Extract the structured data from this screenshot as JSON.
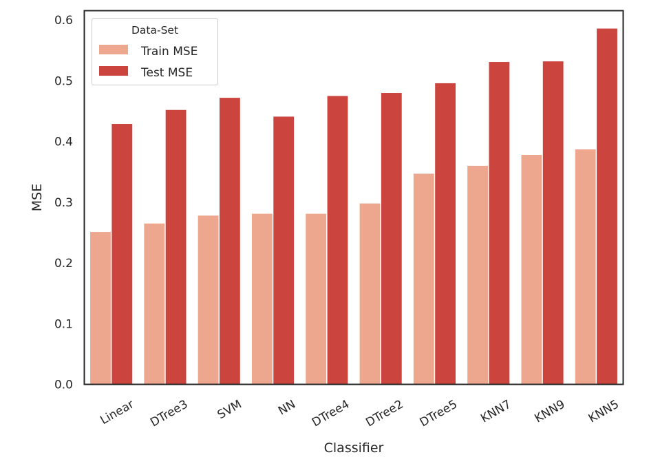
{
  "chart_data": {
    "type": "bar",
    "title": "",
    "xlabel": "Classifier",
    "ylabel": "MSE",
    "categories": [
      "Linear",
      "DTree3",
      "SVM",
      "NN",
      "DTree4",
      "DTree2",
      "DTree5",
      "KNN7",
      "KNN9",
      "KNN5"
    ],
    "series": [
      {
        "name": "Train MSE",
        "color": "#eea78f",
        "values": [
          0.251,
          0.265,
          0.278,
          0.281,
          0.281,
          0.298,
          0.347,
          0.36,
          0.378,
          0.387
        ]
      },
      {
        "name": "Test MSE",
        "color": "#cb443e",
        "values": [
          0.429,
          0.452,
          0.472,
          0.441,
          0.475,
          0.48,
          0.496,
          0.531,
          0.532,
          0.586
        ]
      }
    ],
    "ylim": [
      0,
      0.6155
    ],
    "yticks": [
      "0.0",
      "0.1",
      "0.2",
      "0.3",
      "0.4",
      "0.5",
      "0.6"
    ],
    "grid": false,
    "legend": {
      "title": "Data-Set",
      "placement": "top-left"
    }
  }
}
